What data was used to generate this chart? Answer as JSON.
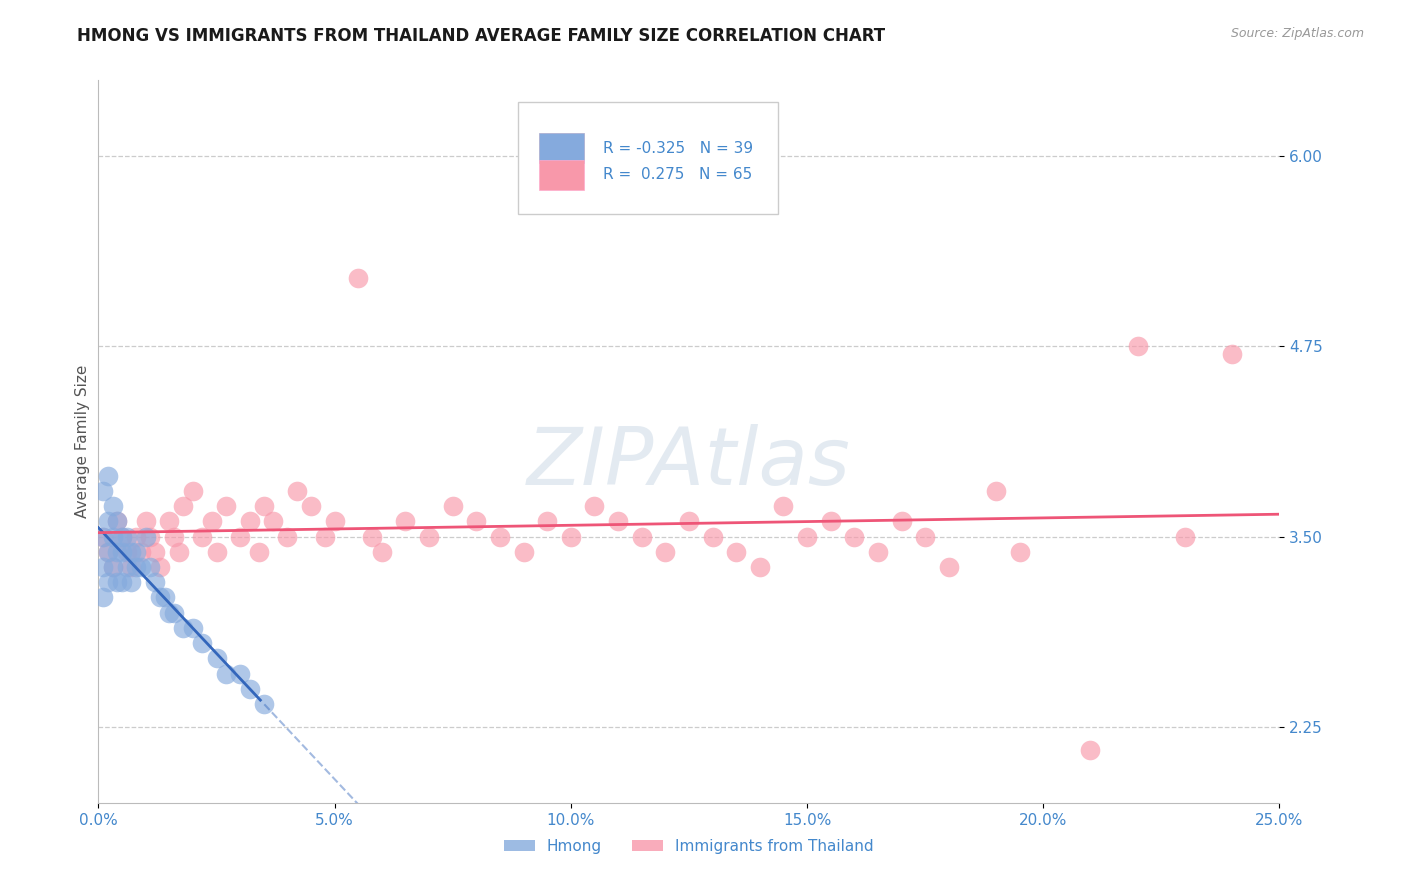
{
  "title": "HMONG VS IMMIGRANTS FROM THAILAND AVERAGE FAMILY SIZE CORRELATION CHART",
  "source": "Source: ZipAtlas.com",
  "ylabel": "Average Family Size",
  "xlim": [
    0.0,
    0.25
  ],
  "ylim": [
    1.75,
    6.5
  ],
  "yticks": [
    2.25,
    3.5,
    4.75,
    6.0
  ],
  "xticks": [
    0.0,
    0.05,
    0.1,
    0.15,
    0.2,
    0.25
  ],
  "xticklabels": [
    "0.0%",
    "5.0%",
    "10.0%",
    "15.0%",
    "20.0%",
    "25.0%"
  ],
  "legend_line1": "R = -0.325   N = 39",
  "legend_line2": "R =  0.275   N = 65",
  "hmong_color": "#85AADD",
  "thailand_color": "#F898AA",
  "regression_hmong_color": "#3366BB",
  "regression_thailand_color": "#EE5577",
  "watermark": "ZIPAtlas",
  "watermark_color": "#BBCCDD",
  "background_color": "#FFFFFF",
  "title_fontsize": 12,
  "axis_label_fontsize": 11,
  "tick_fontsize": 11,
  "tick_color": "#4488CC",
  "grid_color": "#CCCCCC",
  "hmong_x": [
    0.001,
    0.001,
    0.001,
    0.001,
    0.002,
    0.002,
    0.002,
    0.002,
    0.003,
    0.003,
    0.003,
    0.004,
    0.004,
    0.004,
    0.005,
    0.005,
    0.005,
    0.006,
    0.006,
    0.007,
    0.007,
    0.008,
    0.008,
    0.009,
    0.01,
    0.011,
    0.012,
    0.013,
    0.014,
    0.015,
    0.016,
    0.018,
    0.02,
    0.022,
    0.025,
    0.027,
    0.03,
    0.032,
    0.035
  ],
  "hmong_y": [
    3.8,
    3.5,
    3.3,
    3.1,
    3.9,
    3.6,
    3.4,
    3.2,
    3.7,
    3.5,
    3.3,
    3.6,
    3.4,
    3.2,
    3.5,
    3.4,
    3.2,
    3.5,
    3.3,
    3.4,
    3.2,
    3.4,
    3.3,
    3.3,
    3.5,
    3.3,
    3.2,
    3.1,
    3.1,
    3.0,
    3.0,
    2.9,
    2.9,
    2.8,
    2.7,
    2.6,
    2.6,
    2.5,
    2.4
  ],
  "thailand_x": [
    0.001,
    0.002,
    0.003,
    0.004,
    0.005,
    0.006,
    0.007,
    0.008,
    0.009,
    0.01,
    0.011,
    0.012,
    0.013,
    0.015,
    0.016,
    0.017,
    0.018,
    0.02,
    0.022,
    0.024,
    0.025,
    0.027,
    0.03,
    0.032,
    0.034,
    0.035,
    0.037,
    0.04,
    0.042,
    0.045,
    0.048,
    0.05,
    0.055,
    0.058,
    0.06,
    0.065,
    0.07,
    0.075,
    0.08,
    0.085,
    0.09,
    0.095,
    0.1,
    0.105,
    0.11,
    0.115,
    0.12,
    0.125,
    0.13,
    0.135,
    0.14,
    0.145,
    0.15,
    0.155,
    0.16,
    0.165,
    0.17,
    0.175,
    0.18,
    0.19,
    0.195,
    0.21,
    0.22,
    0.23,
    0.24
  ],
  "thailand_y": [
    3.5,
    3.4,
    3.3,
    3.6,
    3.5,
    3.4,
    3.3,
    3.5,
    3.4,
    3.6,
    3.5,
    3.4,
    3.3,
    3.6,
    3.5,
    3.4,
    3.7,
    3.8,
    3.5,
    3.6,
    3.4,
    3.7,
    3.5,
    3.6,
    3.4,
    3.7,
    3.6,
    3.5,
    3.8,
    3.7,
    3.5,
    3.6,
    5.2,
    3.5,
    3.4,
    3.6,
    3.5,
    3.7,
    3.6,
    3.5,
    3.4,
    3.6,
    3.5,
    3.7,
    3.6,
    3.5,
    3.4,
    3.6,
    3.5,
    3.4,
    3.3,
    3.7,
    3.5,
    3.6,
    3.5,
    3.4,
    3.6,
    3.5,
    3.3,
    3.8,
    3.4,
    2.1,
    4.75,
    3.5,
    4.7
  ]
}
